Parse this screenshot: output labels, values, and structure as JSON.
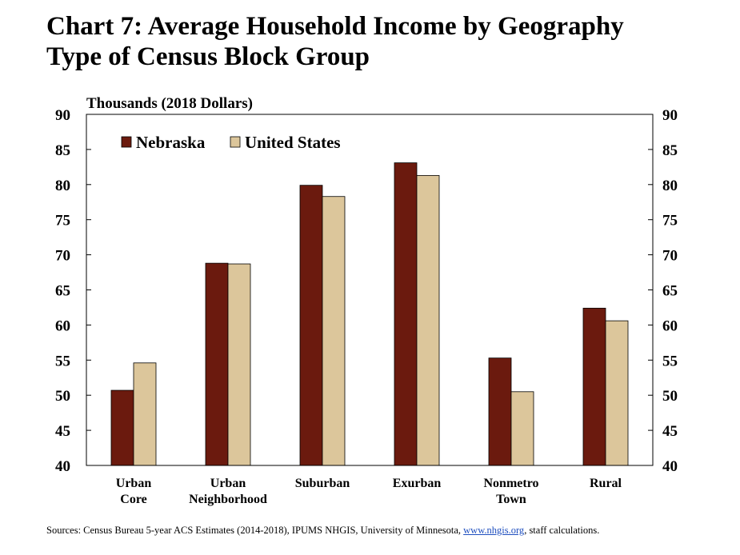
{
  "title": {
    "line1": "Chart 7: Average Household Income by Geography",
    "line2": "Type of Census Block Group"
  },
  "source": {
    "prefix": "Sources: Census Bureau 5-year ACS Estimates (2014-2018), IPUMS NHGIS, University of Minnesota, ",
    "link": "www.nhgis.org",
    "suffix": ", staff calculations."
  },
  "colors": {
    "nebraska": "#6b1a0e",
    "united_states": "#dcc69b"
  },
  "chart_data": {
    "type": "bar",
    "title": "Chart 7: Average Household Income by Geography Type of Census Block Group",
    "ylabel": "Thousands (2018 Dollars)",
    "xlabel": "",
    "ylim": [
      40,
      90
    ],
    "yticks": [
      40,
      45,
      50,
      55,
      60,
      65,
      70,
      75,
      80,
      85,
      90
    ],
    "y_axis_both_sides": true,
    "grid": false,
    "legend_position": "top-left",
    "categories": [
      [
        "Urban",
        "Core"
      ],
      [
        "Urban",
        "Neighborhood"
      ],
      [
        "Suburban"
      ],
      [
        "Exurban"
      ],
      [
        "Nonmetro",
        "Town"
      ],
      [
        "Rural"
      ]
    ],
    "series": [
      {
        "name": "Nebraska",
        "values": [
          50.7,
          68.8,
          79.9,
          83.1,
          55.3,
          62.4
        ]
      },
      {
        "name": "United States",
        "values": [
          54.6,
          68.7,
          78.3,
          81.3,
          50.5,
          60.6
        ]
      }
    ]
  }
}
